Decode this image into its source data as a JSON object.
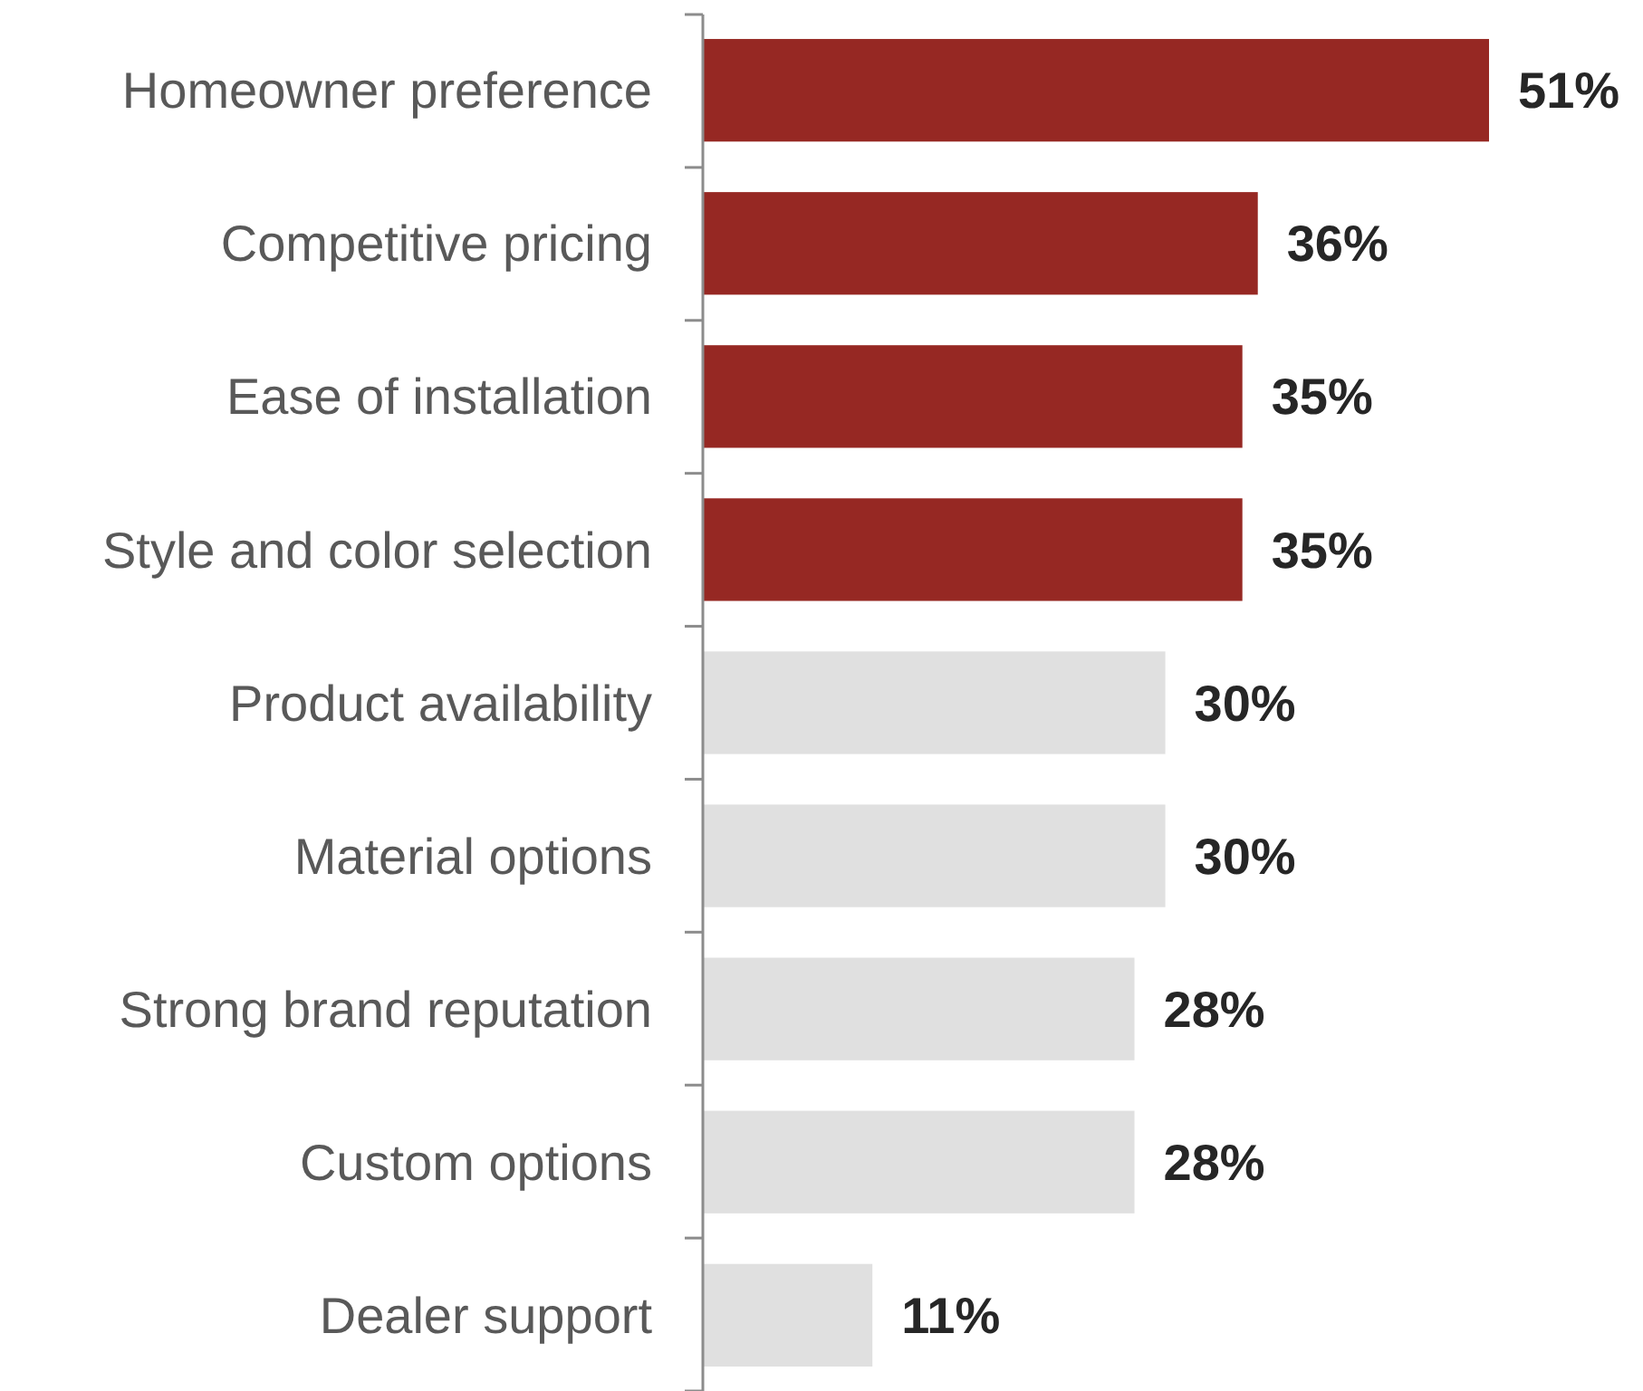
{
  "chart_data": {
    "type": "bar",
    "orientation": "horizontal",
    "categories": [
      "Homeowner preference",
      "Competitive pricing",
      "Ease of installation",
      "Style and color selection",
      "Product availability",
      "Material options",
      "Strong brand reputation",
      "Custom options",
      "Dealer support"
    ],
    "values": [
      51,
      36,
      35,
      35,
      30,
      30,
      28,
      28,
      11
    ],
    "colors": [
      "#962823",
      "#962823",
      "#962823",
      "#962823",
      "#e0e0e0",
      "#e0e0e0",
      "#e0e0e0",
      "#e0e0e0",
      "#e0e0e0"
    ],
    "value_labels": [
      "51%",
      "36%",
      "35%",
      "35%",
      "30%",
      "30%",
      "28%",
      "28%",
      "11%"
    ]
  }
}
